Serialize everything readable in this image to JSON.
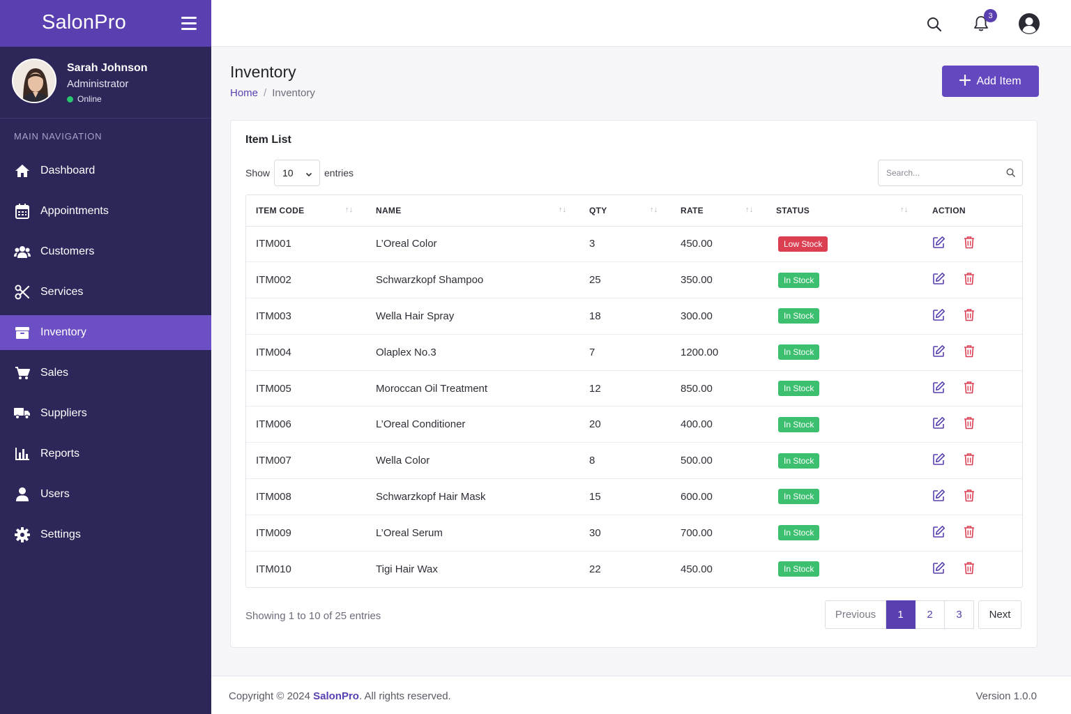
{
  "app": {
    "brand": "SalonPro"
  },
  "user": {
    "name": "Sarah Johnson",
    "role": "Administrator",
    "status": "Online"
  },
  "sidebar": {
    "header": "MAIN NAVIGATION",
    "items": [
      {
        "label": "Dashboard",
        "icon": "home-icon"
      },
      {
        "label": "Appointments",
        "icon": "calendar-icon"
      },
      {
        "label": "Customers",
        "icon": "users-icon"
      },
      {
        "label": "Services",
        "icon": "scissors-icon"
      },
      {
        "label": "Inventory",
        "icon": "box-icon",
        "active": true
      },
      {
        "label": "Sales",
        "icon": "cart-icon"
      },
      {
        "label": "Suppliers",
        "icon": "truck-icon"
      },
      {
        "label": "Reports",
        "icon": "bar-chart-icon"
      },
      {
        "label": "Users",
        "icon": "user-icon"
      },
      {
        "label": "Settings",
        "icon": "gear-icon"
      }
    ]
  },
  "topbar": {
    "notification_count": "3"
  },
  "page": {
    "title": "Inventory",
    "breadcrumb": {
      "home": "Home",
      "separator": "/",
      "current": "Inventory"
    },
    "add_button": "Add Item"
  },
  "card": {
    "title": "Item List",
    "show_label": "Show",
    "entries_value": "10",
    "entries_label": "entries",
    "search_placeholder": "Search..."
  },
  "table": {
    "headers": [
      "ITEM CODE",
      "NAME",
      "QTY",
      "RATE",
      "STATUS",
      "ACTION"
    ],
    "rows": [
      {
        "code": "ITM001",
        "name": "L’Oreal Color",
        "qty": "3",
        "rate": "450.00",
        "status": "Low Stock"
      },
      {
        "code": "ITM002",
        "name": "Schwarzkopf Shampoo",
        "qty": "25",
        "rate": "350.00",
        "status": "In Stock"
      },
      {
        "code": "ITM003",
        "name": "Wella Hair Spray",
        "qty": "18",
        "rate": "300.00",
        "status": "In Stock"
      },
      {
        "code": "ITM004",
        "name": "Olaplex No.3",
        "qty": "7",
        "rate": "1200.00",
        "status": "In Stock"
      },
      {
        "code": "ITM005",
        "name": "Moroccan Oil Treatment",
        "qty": "12",
        "rate": "850.00",
        "status": "In Stock"
      },
      {
        "code": "ITM006",
        "name": "L’Oreal Conditioner",
        "qty": "20",
        "rate": "400.00",
        "status": "In Stock"
      },
      {
        "code": "ITM007",
        "name": "Wella Color",
        "qty": "8",
        "rate": "500.00",
        "status": "In Stock"
      },
      {
        "code": "ITM008",
        "name": "Schwarzkopf Hair Mask",
        "qty": "15",
        "rate": "600.00",
        "status": "In Stock"
      },
      {
        "code": "ITM009",
        "name": "L’Oreal Serum",
        "qty": "30",
        "rate": "700.00",
        "status": "In Stock"
      },
      {
        "code": "ITM010",
        "name": "Tigi Hair Wax",
        "qty": "22",
        "rate": "450.00",
        "status": "In Stock"
      }
    ]
  },
  "pagination": {
    "info": "Showing 1 to 10 of 25 entries",
    "previous": "Previous",
    "pages": [
      "1",
      "2",
      "3"
    ],
    "next": "Next"
  },
  "footer": {
    "copyright_prefix": "Copyright © 2024 ",
    "copyright_brand": "SalonPro",
    "copyright_suffix": ". All rights reserved.",
    "version": "Version 1.0.0"
  },
  "colors": {
    "primary": "#5a3fb0",
    "sidebar": "#2c2659",
    "success": "#3cbf6f",
    "danger": "#dc3e52"
  }
}
